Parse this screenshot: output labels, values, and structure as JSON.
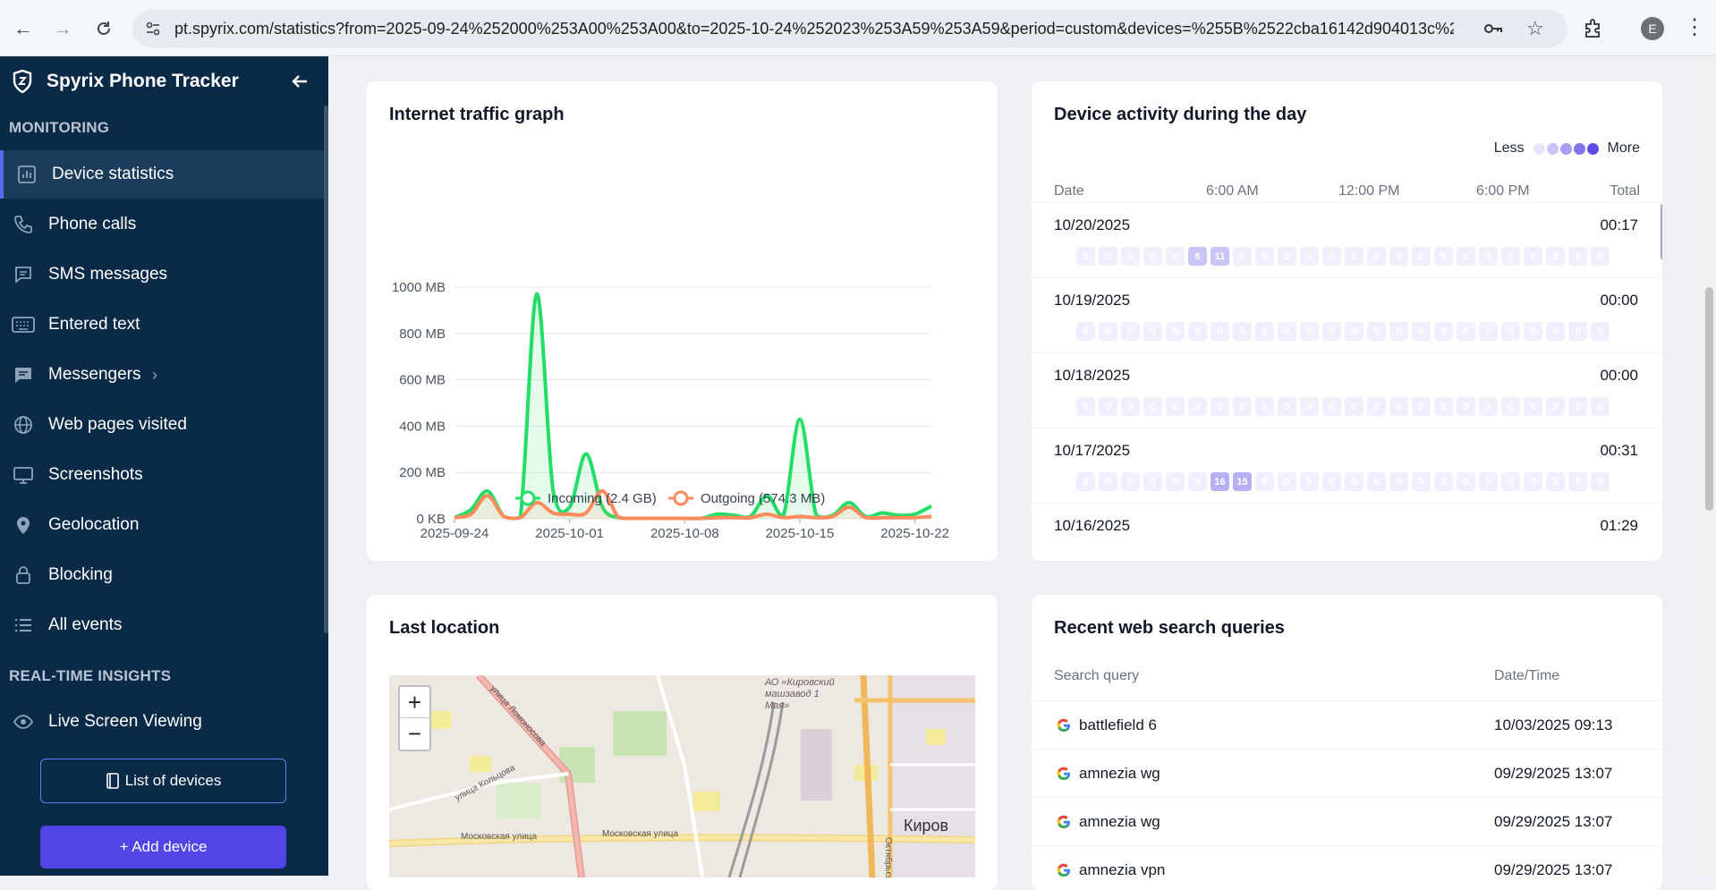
{
  "browser": {
    "url": "pt.spyrix.com/statistics?from=2025-09-24%252000%253A00%253A00&to=2025-10-24%252023%253A59%253A59&period=custom&devices=%255B%2522cba16142d904013c%2522%25...",
    "profile_initial": "E"
  },
  "sidebar": {
    "brand": "Spyrix Phone Tracker",
    "monitoring_label": "MONITORING",
    "items": [
      {
        "label": "Device statistics",
        "icon": "bar-chart-icon"
      },
      {
        "label": "Phone calls",
        "icon": "phone-icon"
      },
      {
        "label": "SMS messages",
        "icon": "message-icon"
      },
      {
        "label": "Entered text",
        "icon": "keyboard-icon"
      },
      {
        "label": "Messengers",
        "icon": "chat-icon"
      },
      {
        "label": "Web pages visited",
        "icon": "globe-icon"
      },
      {
        "label": "Screenshots",
        "icon": "monitor-icon"
      },
      {
        "label": "Geolocation",
        "icon": "pin-icon"
      },
      {
        "label": "Blocking",
        "icon": "lock-icon"
      },
      {
        "label": "All events",
        "icon": "list-icon"
      }
    ],
    "realtime_label": "REAL-TIME INSIGHTS",
    "live_item": "Live Screen Viewing",
    "list_devices_button": "List of devices",
    "add_device_button": "+ Add device"
  },
  "traffic_card": {
    "title": "Internet traffic graph",
    "legend_incoming": "Incoming (2.4 GB)",
    "legend_outgoing": "Outgoing (574.3 MB)"
  },
  "chart_data": {
    "type": "area",
    "title": "Internet traffic graph",
    "x_ticks": [
      "2025-09-24",
      "2025-10-01",
      "2025-10-08",
      "2025-10-15",
      "2025-10-22"
    ],
    "y_ticks": [
      "0 KB",
      "200 MB",
      "400 MB",
      "600 MB",
      "800 MB",
      "1000 MB"
    ],
    "ylim": [
      0,
      1000
    ],
    "x": [
      "2025-09-24",
      "2025-09-25",
      "2025-09-26",
      "2025-09-27",
      "2025-09-28",
      "2025-09-29",
      "2025-09-30",
      "2025-10-01",
      "2025-10-02",
      "2025-10-03",
      "2025-10-04",
      "2025-10-05",
      "2025-10-06",
      "2025-10-07",
      "2025-10-08",
      "2025-10-09",
      "2025-10-10",
      "2025-10-11",
      "2025-10-12",
      "2025-10-13",
      "2025-10-14",
      "2025-10-15",
      "2025-10-16",
      "2025-10-17",
      "2025-10-18",
      "2025-10-19",
      "2025-10-20",
      "2025-10-21",
      "2025-10-22",
      "2025-10-23"
    ],
    "series": [
      {
        "name": "Incoming (2.4 GB)",
        "color": "#22dd66",
        "values": [
          5,
          40,
          120,
          10,
          5,
          970,
          120,
          50,
          280,
          50,
          5,
          2,
          2,
          2,
          2,
          2,
          20,
          15,
          10,
          100,
          15,
          430,
          15,
          15,
          70,
          10,
          25,
          15,
          20,
          55
        ]
      },
      {
        "name": "Outgoing (574.3 MB)",
        "color": "#ff8a5c",
        "values": [
          5,
          20,
          100,
          10,
          5,
          70,
          25,
          20,
          25,
          120,
          5,
          2,
          2,
          2,
          2,
          2,
          5,
          5,
          5,
          20,
          5,
          10,
          5,
          10,
          50,
          5,
          5,
          5,
          5,
          10
        ]
      }
    ],
    "grid": true,
    "legend_position": "bottom"
  },
  "activity_card": {
    "title": "Device activity during the day",
    "less_label": "Less",
    "more_label": "More",
    "legend_colors": [
      "#e7e5fb",
      "#c9c5f6",
      "#a59df1",
      "#7f74ec",
      "#5b4fe6"
    ],
    "columns": {
      "date": "Date",
      "t1": "6:00 AM",
      "t2": "12:00 PM",
      "t3": "6:00 PM",
      "total": "Total"
    },
    "rows": [
      {
        "date": "10/20/2025",
        "total": "00:17",
        "cells": [
          "0",
          "0",
          "0",
          "0",
          "0",
          "6",
          "11",
          "0",
          "0",
          "0",
          "0",
          "0",
          "0",
          "0",
          "0",
          "0",
          "0",
          "0",
          "0",
          "0",
          "0",
          "0",
          "0",
          "0"
        ]
      },
      {
        "date": "10/19/2025",
        "total": "00:00",
        "cells": [
          "0",
          "0",
          "0",
          "0",
          "0",
          "0",
          "0",
          "0",
          "0",
          "0",
          "0",
          "0",
          "0",
          "0",
          "0",
          "0",
          "0",
          "0",
          "0",
          "0",
          "0",
          "0",
          "0",
          "0"
        ]
      },
      {
        "date": "10/18/2025",
        "total": "00:00",
        "cells": [
          "0",
          "0",
          "0",
          "0",
          "0",
          "0",
          "0",
          "0",
          "0",
          "0",
          "0",
          "0",
          "0",
          "0",
          "0",
          "0",
          "0",
          "0",
          "0",
          "0",
          "0",
          "0",
          "0",
          "0"
        ]
      },
      {
        "date": "10/17/2025",
        "total": "00:31",
        "cells": [
          "0",
          "0",
          "0",
          "0",
          "0",
          "0",
          "16",
          "15",
          "0",
          "0",
          "0",
          "0",
          "0",
          "0",
          "0",
          "0",
          "0",
          "0",
          "0",
          "0",
          "0",
          "0",
          "0",
          "0"
        ]
      },
      {
        "date": "10/16/2025",
        "total": "01:29",
        "cells": []
      }
    ]
  },
  "location_card": {
    "title": "Last location",
    "zoom_in": "+",
    "zoom_out": "−",
    "map_labels": [
      "улица Ломоносова",
      "АО «Кировский машзавод 1 Мая»",
      "улица Кольцова",
      "Московская улица",
      "Московская улица",
      "Киров",
      "Октябрьский"
    ]
  },
  "search_card": {
    "title": "Recent web search queries",
    "col_query": "Search query",
    "col_date": "Date/Time",
    "rows": [
      {
        "query": "battlefield 6",
        "date": "10/03/2025 09:13"
      },
      {
        "query": "amnezia wg",
        "date": "09/29/2025 13:07"
      },
      {
        "query": "amnezia wg",
        "date": "09/29/2025 13:07"
      },
      {
        "query": "amnezia vpn",
        "date": "09/29/2025 13:07"
      }
    ]
  }
}
